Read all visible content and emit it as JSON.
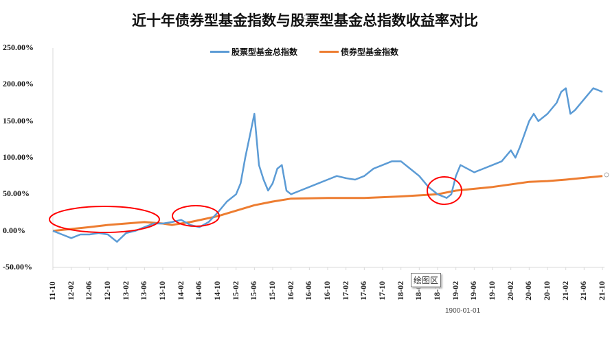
{
  "chart_data": {
    "type": "line",
    "title": "近十年债券型基金指数与股票型基金总指数收益率对比",
    "ylim": [
      -50,
      250
    ],
    "yticks": [
      "250.00%",
      "200.00%",
      "150.00%",
      "100.00%",
      "50.00%",
      "0.00%",
      "-50.00%"
    ],
    "ytick_values": [
      250,
      200,
      150,
      100,
      50,
      0,
      -50
    ],
    "xticks": [
      "11-10",
      "12-02",
      "12-06",
      "12-10",
      "13-02",
      "13-06",
      "13-10",
      "14-02",
      "14-06",
      "14-10",
      "15-02",
      "15-06",
      "15-10",
      "16-02",
      "16-06",
      "16-10",
      "17-02",
      "17-06",
      "17-10",
      "18-02",
      "18-06",
      "18-10",
      "19-02",
      "19-06",
      "19-10",
      "20-02",
      "20-06",
      "20-10",
      "21-02",
      "21-06",
      "21-10"
    ],
    "xrange": [
      "2011-10",
      "2021-10"
    ],
    "grid": false,
    "legend_position": "top",
    "series": [
      {
        "name": "股票型基金总指数",
        "color": "#5B9BD5",
        "x": [
          "2011-10",
          "2011-12",
          "2012-02",
          "2012-04",
          "2012-06",
          "2012-08",
          "2012-10",
          "2012-12",
          "2013-02",
          "2013-04",
          "2013-06",
          "2013-08",
          "2013-10",
          "2013-12",
          "2014-02",
          "2014-04",
          "2014-06",
          "2014-08",
          "2014-10",
          "2014-12",
          "2015-02",
          "2015-03",
          "2015-04",
          "2015-05",
          "2015-06",
          "2015-07",
          "2015-08",
          "2015-09",
          "2015-10",
          "2015-11",
          "2015-12",
          "2016-01",
          "2016-02",
          "2016-04",
          "2016-06",
          "2016-08",
          "2016-10",
          "2016-12",
          "2017-02",
          "2017-04",
          "2017-06",
          "2017-08",
          "2017-10",
          "2017-12",
          "2018-02",
          "2018-04",
          "2018-06",
          "2018-08",
          "2018-10",
          "2018-12",
          "2019-01",
          "2019-02",
          "2019-03",
          "2019-06",
          "2019-08",
          "2019-10",
          "2019-12",
          "2020-02",
          "2020-03",
          "2020-04",
          "2020-06",
          "2020-07",
          "2020-08",
          "2020-10",
          "2020-12",
          "2021-01",
          "2021-02",
          "2021-03",
          "2021-04",
          "2021-06",
          "2021-08",
          "2021-10"
        ],
        "values": [
          0,
          -5,
          -10,
          -5,
          -5,
          -3,
          -5,
          -15,
          -3,
          0,
          5,
          10,
          10,
          12,
          15,
          8,
          5,
          12,
          25,
          40,
          50,
          65,
          100,
          130,
          160,
          90,
          70,
          55,
          65,
          85,
          90,
          55,
          50,
          55,
          60,
          65,
          70,
          75,
          72,
          70,
          75,
          85,
          90,
          95,
          95,
          85,
          75,
          60,
          50,
          45,
          50,
          75,
          90,
          80,
          85,
          90,
          95,
          110,
          100,
          115,
          150,
          160,
          150,
          160,
          175,
          190,
          195,
          160,
          165,
          180,
          195,
          190
        ]
      },
      {
        "name": "债券型基金指数",
        "color": "#ED7D31",
        "x": [
          "2011-10",
          "2012-06",
          "2012-10",
          "2013-06",
          "2013-10",
          "2013-12",
          "2014-04",
          "2014-10",
          "2015-06",
          "2015-10",
          "2016-02",
          "2016-10",
          "2017-06",
          "2018-02",
          "2018-10",
          "2019-02",
          "2019-10",
          "2020-06",
          "2020-10",
          "2021-02",
          "2021-10"
        ],
        "values": [
          0,
          5,
          8,
          12,
          10,
          8,
          12,
          20,
          35,
          40,
          44,
          45,
          45,
          47,
          50,
          55,
          60,
          67,
          68,
          70,
          75
        ]
      }
    ],
    "annotations": {
      "highlight_color": "#FF0000",
      "ellipse_count": 3
    }
  },
  "ui": {
    "tooltip": "绘图区",
    "date_label": "1900-01-01"
  }
}
